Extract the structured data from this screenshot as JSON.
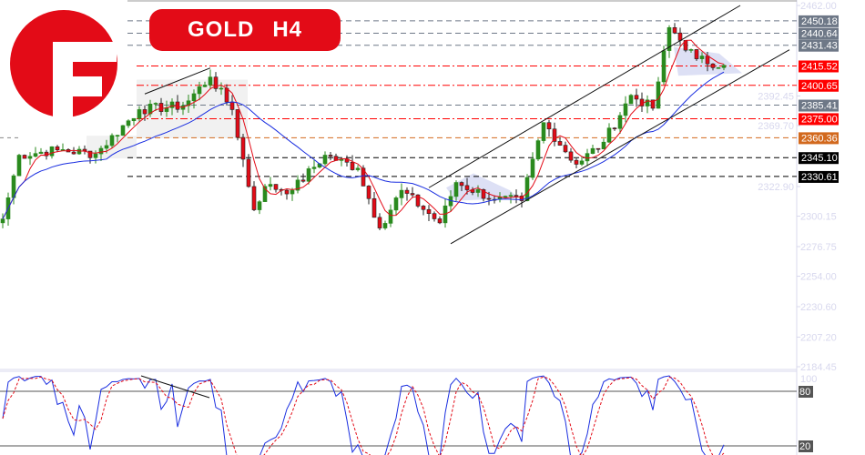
{
  "header": {
    "symbol": "GOLD",
    "timeframe": "H4",
    "logo_letter": "F"
  },
  "colors": {
    "brand": "#e30b17",
    "bull": "#2a8a1e",
    "bear": "#e30b17",
    "ma_fast": "#e30b17",
    "ma_slow": "#1a2ee0",
    "axis_text": "#d8d8ee"
  },
  "chart_data": {
    "type": "candlestick",
    "title": "GOLD H4",
    "ylim": [
      2184.45,
      2462.0
    ],
    "y_ticks": [
      "2462.00",
      "2392.45",
      "2369.70",
      "2322.90",
      "2300.15",
      "2276.75",
      "2254.00",
      "2230.60",
      "2207.20",
      "2184.45"
    ],
    "levels": [
      {
        "label": "2450.18",
        "value": 2450.18,
        "color": "#6e7887"
      },
      {
        "label": "2440.64",
        "value": 2440.64,
        "color": "#6e7887"
      },
      {
        "label": "2431.43",
        "value": 2431.43,
        "color": "#6e7887"
      },
      {
        "label": "2415.52",
        "value": 2415.52,
        "color": "#ff0000"
      },
      {
        "label": "2400.65",
        "value": 2400.65,
        "color": "#ff0000"
      },
      {
        "label": "2385.41",
        "value": 2385.41,
        "color": "#6e7887"
      },
      {
        "label": "2375.00",
        "value": 2375.0,
        "color": "#ff0000"
      },
      {
        "label": "2360.36",
        "value": 2360.36,
        "color": "#d2691e"
      },
      {
        "label": "2345.10",
        "value": 2345.1,
        "color": "#000000"
      },
      {
        "label": "2330.61",
        "value": 2330.61,
        "color": "#000000"
      }
    ],
    "close_waypoints": [
      [
        0,
        2298
      ],
      [
        3,
        2347
      ],
      [
        10,
        2351
      ],
      [
        17,
        2348
      ],
      [
        25,
        2382
      ],
      [
        33,
        2385
      ],
      [
        38,
        2407
      ],
      [
        42,
        2382
      ],
      [
        46,
        2305
      ],
      [
        48,
        2323
      ],
      [
        53,
        2320
      ],
      [
        59,
        2347
      ],
      [
        65,
        2337
      ],
      [
        69,
        2291
      ],
      [
        73,
        2320
      ],
      [
        80,
        2295
      ],
      [
        83,
        2326
      ],
      [
        90,
        2313
      ],
      [
        95,
        2312
      ],
      [
        99,
        2372
      ],
      [
        105,
        2340
      ],
      [
        110,
        2357
      ],
      [
        115,
        2393
      ],
      [
        119,
        2383
      ],
      [
        122,
        2445
      ],
      [
        127,
        2421
      ],
      [
        132,
        2416
      ]
    ],
    "channel": {
      "upper": [
        [
          78,
          2322
        ],
        [
          135,
          2462
        ]
      ],
      "lower": [
        [
          82,
          2279
        ],
        [
          144,
          2428
        ]
      ]
    },
    "divergence_line": [
      [
        26,
        2394
      ],
      [
        38,
        2414
      ]
    ],
    "oscillator": {
      "name": "Stochastic",
      "ticks": [
        "100",
        "80",
        "20"
      ],
      "levels": [
        80,
        20
      ]
    }
  }
}
